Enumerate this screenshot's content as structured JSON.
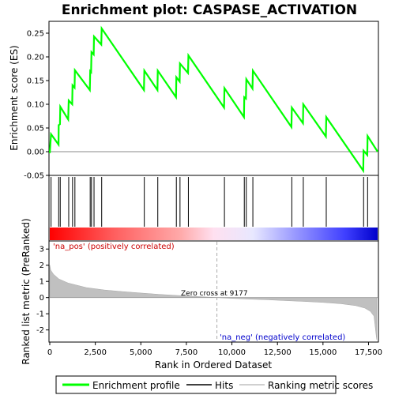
{
  "chart_data": [
    {
      "type": "line",
      "title": "Enrichment plot: CASPASE_ACTIVATION",
      "ylabel": "Enrichment score (ES)",
      "ylim": [
        -0.05,
        0.275
      ],
      "yticks": [
        "-0.05",
        "0.00",
        "0.05",
        "0.10",
        "0.15",
        "0.20",
        "0.25"
      ],
      "ytick_values": [
        -0.05,
        0,
        0.05,
        0.1,
        0.15,
        0.2,
        0.25
      ],
      "xlim": [
        0,
        18000
      ],
      "series": [
        {
          "name": "Enrichment profile",
          "color": "#00ff00",
          "points": [
            [
              0,
              -0.003
            ],
            [
              70,
              0.037
            ],
            [
              480,
              0.015
            ],
            [
              490,
              0.056
            ],
            [
              560,
              0.058
            ],
            [
              575,
              0.095
            ],
            [
              1010,
              0.068
            ],
            [
              1040,
              0.108
            ],
            [
              1230,
              0.1
            ],
            [
              1250,
              0.14
            ],
            [
              1360,
              0.135
            ],
            [
              1380,
              0.172
            ],
            [
              2200,
              0.13
            ],
            [
              2220,
              0.17
            ],
            [
              2270,
              0.168
            ],
            [
              2290,
              0.21
            ],
            [
              2410,
              0.205
            ],
            [
              2430,
              0.243
            ],
            [
              2830,
              0.226
            ],
            [
              2850,
              0.26
            ],
            [
              5170,
              0.13
            ],
            [
              5190,
              0.171
            ],
            [
              5910,
              0.13
            ],
            [
              5930,
              0.171
            ],
            [
              6930,
              0.115
            ],
            [
              6950,
              0.157
            ],
            [
              7130,
              0.148
            ],
            [
              7150,
              0.186
            ],
            [
              7590,
              0.166
            ],
            [
              7610,
              0.203
            ],
            [
              9570,
              0.093
            ],
            [
              9590,
              0.134
            ],
            [
              10660,
              0.073
            ],
            [
              10680,
              0.115
            ],
            [
              10770,
              0.112
            ],
            [
              10790,
              0.153
            ],
            [
              11130,
              0.133
            ],
            [
              11150,
              0.171
            ],
            [
              13270,
              0.052
            ],
            [
              13290,
              0.093
            ],
            [
              13900,
              0.06
            ],
            [
              13920,
              0.1
            ],
            [
              15160,
              0.032
            ],
            [
              15180,
              0.073
            ],
            [
              17210,
              -0.04
            ],
            [
              17230,
              0.002
            ],
            [
              17430,
              -0.007
            ],
            [
              17450,
              0.033
            ],
            [
              18000,
              0.0
            ]
          ]
        }
      ],
      "hits": [
        70,
        490,
        575,
        1040,
        1250,
        1380,
        2220,
        2290,
        2430,
        2850,
        5190,
        5930,
        6950,
        7150,
        7610,
        9590,
        10680,
        10790,
        11150,
        13290,
        13920,
        15180,
        17230,
        17450
      ]
    },
    {
      "type": "area",
      "ylabel": "Ranked list metric (PreRanked)",
      "xlabel": "Rank in Ordered Dataset",
      "ylim": [
        -2.75,
        3.5
      ],
      "yticks": [
        "-2",
        "-1",
        "0",
        "1",
        "2",
        "3"
      ],
      "ytick_values": [
        -2,
        -1,
        0,
        1,
        2,
        3
      ],
      "xlim": [
        0,
        18000
      ],
      "xticks": [
        "0",
        "2,500",
        "5,000",
        "7,500",
        "10,000",
        "12,500",
        "15,000",
        "17,500"
      ],
      "xtick_values": [
        0,
        2500,
        5000,
        7500,
        10000,
        12500,
        15000,
        17500
      ],
      "series": [
        {
          "name": "Ranking metric scores",
          "color": "#c0c0c0",
          "points": [
            [
              0,
              2.0
            ],
            [
              50,
              1.7
            ],
            [
              200,
              1.45
            ],
            [
              500,
              1.15
            ],
            [
              1000,
              0.9
            ],
            [
              2000,
              0.62
            ],
            [
              3000,
              0.47
            ],
            [
              4000,
              0.37
            ],
            [
              5000,
              0.28
            ],
            [
              6000,
              0.2
            ],
            [
              7000,
              0.13
            ],
            [
              8000,
              0.07
            ],
            [
              9177,
              0.0
            ],
            [
              10000,
              -0.05
            ],
            [
              11000,
              -0.1
            ],
            [
              12000,
              -0.14
            ],
            [
              13000,
              -0.19
            ],
            [
              14000,
              -0.24
            ],
            [
              15000,
              -0.3
            ],
            [
              16000,
              -0.38
            ],
            [
              16800,
              -0.5
            ],
            [
              17300,
              -0.65
            ],
            [
              17600,
              -0.85
            ],
            [
              17800,
              -1.15
            ],
            [
              17950,
              -2.6
            ]
          ]
        }
      ],
      "zero_cross": 9177,
      "zero_cross_label": "Zero cross at 9177",
      "pos_label": "'na_pos' (positively correlated)",
      "neg_label": "'na_neg' (negatively correlated)",
      "pos_label_color": "#cc0000",
      "neg_label_color": "#0000cc"
    }
  ],
  "legend": {
    "items": [
      {
        "label": "Enrichment profile",
        "color": "#00ff00"
      },
      {
        "label": "Hits",
        "color": "#000000"
      },
      {
        "label": "Ranking metric scores",
        "color": "#c0c0c0"
      }
    ]
  }
}
